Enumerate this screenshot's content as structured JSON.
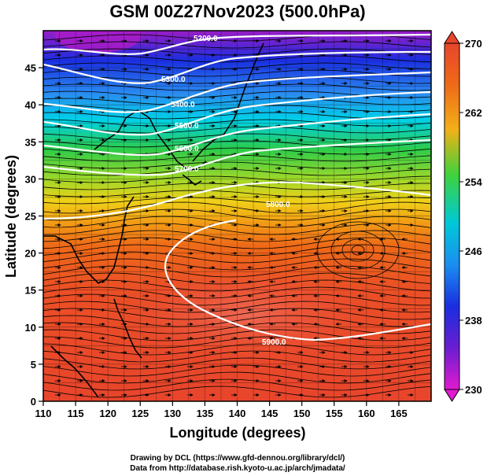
{
  "title": "GSM 00Z27Nov2023 (500.0hPa)",
  "xlabel": "Longitude (degrees)",
  "ylabel": "Latitude  (degrees)",
  "credits": [
    "Drawing by DCL (https://www.gfd-dennou.org/library/dcl/)",
    "Data from http://database.rish.kyoto-u.ac.jp/arch/jmadata/"
  ],
  "map": {
    "lon_range": [
      110,
      170
    ],
    "lat_range": [
      0,
      50
    ],
    "x_ticks": [
      "110",
      "115",
      "120",
      "125",
      "130",
      "135",
      "140",
      "145",
      "150",
      "155",
      "160",
      "165"
    ],
    "y_ticks": [
      "0",
      "5",
      "10",
      "15",
      "20",
      "25",
      "30",
      "35",
      "40",
      "45"
    ],
    "shading_variable": "temperature (K)",
    "contours": [
      {
        "label": "5200.0",
        "lon": 145,
        "lat": 48.5
      },
      {
        "label": "5300.0",
        "lon": 130,
        "lat": 44.5
      },
      {
        "label": "5400.0",
        "lon": 132,
        "lat": 41.5
      },
      {
        "label": "5500.0",
        "lon": 133,
        "lat": 38.5
      },
      {
        "label": "5600.0",
        "lon": 133,
        "lat": 35.5
      },
      {
        "label": "5700.0",
        "lon": 133,
        "lat": 32.5
      },
      {
        "label": "5800.0",
        "lon": 151.5,
        "lat": 29
      },
      {
        "label": "5900.0",
        "lon": 151,
        "lat": 7.2
      }
    ],
    "colors": {
      "violet": "#a01ac8",
      "blue": "#1432e0",
      "cyan": "#00c8e6",
      "green": "#32c832",
      "yellow": "#c8dc1e",
      "orange": "#f08c14",
      "red": "#e8412a"
    }
  },
  "colorbar": {
    "ticks": [
      "270",
      "262",
      "254",
      "246",
      "238",
      "230"
    ]
  }
}
